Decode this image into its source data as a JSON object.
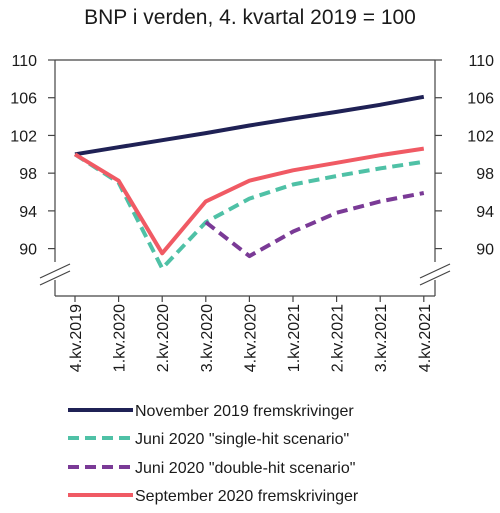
{
  "chart_data": {
    "type": "line",
    "title": "BNP i verden, 4. kvartal 2019 = 100",
    "xlabel": "",
    "ylabel": "",
    "categories": [
      "4.kv.2019",
      "1.kv.2020",
      "2.kv.2020",
      "3.kv.2020",
      "4.kv.2020",
      "1.kv.2021",
      "2.kv.2021",
      "3.kv.2021",
      "4.kv.2021"
    ],
    "yticks": [
      90,
      94,
      98,
      102,
      106,
      110
    ],
    "ylim": [
      86,
      110
    ],
    "axis_break": true,
    "grid": false,
    "legend_position": "bottom",
    "series": [
      {
        "name": "November 2019 fremskrivinger",
        "color": "#1f2155",
        "dashed": false,
        "values": [
          100,
          100.75,
          101.5,
          102.25,
          103.05,
          103.8,
          104.5,
          105.25,
          106.1
        ]
      },
      {
        "name": "Juni 2020 \"single-hit scenario\"",
        "color": "#4fc1a6",
        "dashed": true,
        "values": [
          100,
          97,
          87.9,
          92.8,
          95.3,
          96.8,
          97.7,
          98.5,
          99.2
        ]
      },
      {
        "name": "Juni 2020 \"double-hit scenario\"",
        "color": "#7a3a96",
        "dashed": true,
        "values": [
          null,
          null,
          null,
          92.8,
          89.2,
          91.8,
          93.8,
          95,
          95.9
        ]
      },
      {
        "name": "September 2020 fremskrivinger",
        "color": "#f05a64",
        "dashed": false,
        "values": [
          100,
          97.2,
          89.5,
          95,
          97.2,
          98.3,
          99.1,
          99.9,
          100.6
        ]
      }
    ]
  }
}
